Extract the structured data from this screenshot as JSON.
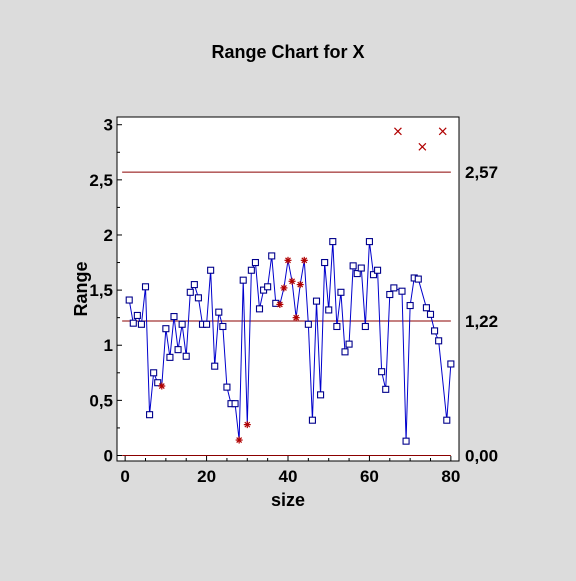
{
  "chart_data": {
    "type": "line",
    "title": "Range Chart for X",
    "xlabel": "size",
    "ylabel": "Range",
    "xlim": [
      -2,
      82
    ],
    "ylim": [
      -0.05,
      3.07
    ],
    "x_ticks": [
      0,
      20,
      40,
      60,
      80
    ],
    "x_tick_labels": [
      "0",
      "20",
      "40",
      "60",
      "80"
    ],
    "y_ticks": [
      0,
      0.5,
      1,
      1.5,
      2,
      2.5,
      3
    ],
    "y_tick_labels": [
      "0",
      "0,5",
      "1",
      "1,5",
      "2",
      "2,5",
      "3"
    ],
    "grid": false,
    "control_limits": [
      {
        "value": 2.57,
        "label": "2,57"
      },
      {
        "value": 1.22,
        "label": "1,22"
      },
      {
        "value": 0.0,
        "label": "0,00"
      }
    ],
    "series": [
      {
        "values": [
          [
            1,
            1.41
          ],
          [
            2,
            1.2
          ],
          [
            3,
            1.27
          ],
          [
            4,
            1.19
          ],
          [
            5,
            1.53
          ],
          [
            6,
            0.37
          ],
          [
            7,
            0.75
          ],
          [
            8,
            0.66
          ],
          [
            9,
            0.63
          ],
          [
            10,
            1.15
          ],
          [
            11,
            0.89
          ],
          [
            12,
            1.26
          ],
          [
            13,
            0.96
          ],
          [
            14,
            1.19
          ],
          [
            15,
            0.9
          ],
          [
            16,
            1.48
          ],
          [
            17,
            1.55
          ],
          [
            18,
            1.43
          ],
          [
            19,
            1.19
          ],
          [
            20,
            1.19
          ],
          [
            21,
            1.68
          ],
          [
            22,
            0.81
          ],
          [
            23,
            1.3
          ],
          [
            24,
            1.17
          ],
          [
            25,
            0.62
          ],
          [
            26,
            0.47
          ],
          [
            27,
            0.47
          ],
          [
            28,
            0.14
          ],
          [
            29,
            1.59
          ],
          [
            30,
            0.28
          ],
          [
            31,
            1.68
          ],
          [
            32,
            1.75
          ],
          [
            33,
            1.33
          ],
          [
            34,
            1.5
          ],
          [
            35,
            1.53
          ],
          [
            36,
            1.81
          ],
          [
            37,
            1.38
          ],
          [
            38,
            1.37
          ],
          [
            39,
            1.52
          ],
          [
            40,
            1.77
          ],
          [
            41,
            1.58
          ],
          [
            42,
            1.25
          ],
          [
            43,
            1.55
          ],
          [
            44,
            1.77
          ],
          [
            45,
            1.19
          ],
          [
            46,
            0.32
          ],
          [
            47,
            1.4
          ],
          [
            48,
            0.55
          ],
          [
            49,
            1.75
          ],
          [
            50,
            1.32
          ],
          [
            51,
            1.94
          ],
          [
            52,
            1.17
          ],
          [
            53,
            1.48
          ],
          [
            54,
            0.94
          ],
          [
            55,
            1.01
          ],
          [
            56,
            1.72
          ],
          [
            57,
            1.65
          ],
          [
            58,
            1.7
          ],
          [
            59,
            1.17
          ],
          [
            60,
            1.94
          ],
          [
            61,
            1.64
          ],
          [
            62,
            1.68
          ],
          [
            63,
            0.76
          ],
          [
            64,
            0.6
          ],
          [
            65,
            1.46
          ],
          [
            66,
            1.52
          ],
          [
            68,
            1.49
          ],
          [
            69,
            0.13
          ],
          [
            70,
            1.36
          ],
          [
            71,
            1.61
          ],
          [
            72,
            1.6
          ],
          [
            74,
            1.34
          ],
          [
            75,
            1.28
          ],
          [
            76,
            1.13
          ],
          [
            77,
            1.04
          ],
          [
            79,
            0.32
          ],
          [
            80,
            0.83
          ]
        ],
        "marker": "square",
        "color": "#00008b"
      }
    ],
    "highlighted_points": {
      "marker": "asterisk",
      "color": "#b00000",
      "x": [
        9,
        28,
        30,
        38,
        39,
        40,
        41,
        42,
        43,
        44
      ]
    },
    "excluded_points": {
      "marker": "x",
      "color": "#b00000",
      "values": [
        [
          67,
          2.94
        ],
        [
          73,
          2.8
        ],
        [
          78,
          2.94
        ]
      ]
    },
    "colors": {
      "background": "#dcdcdc",
      "plot_background": "#ffffff",
      "line": "#0000cd",
      "marker": "#00008b",
      "limit_line": "#8b0000",
      "highlight": "#b00000",
      "text": "#000000"
    }
  }
}
